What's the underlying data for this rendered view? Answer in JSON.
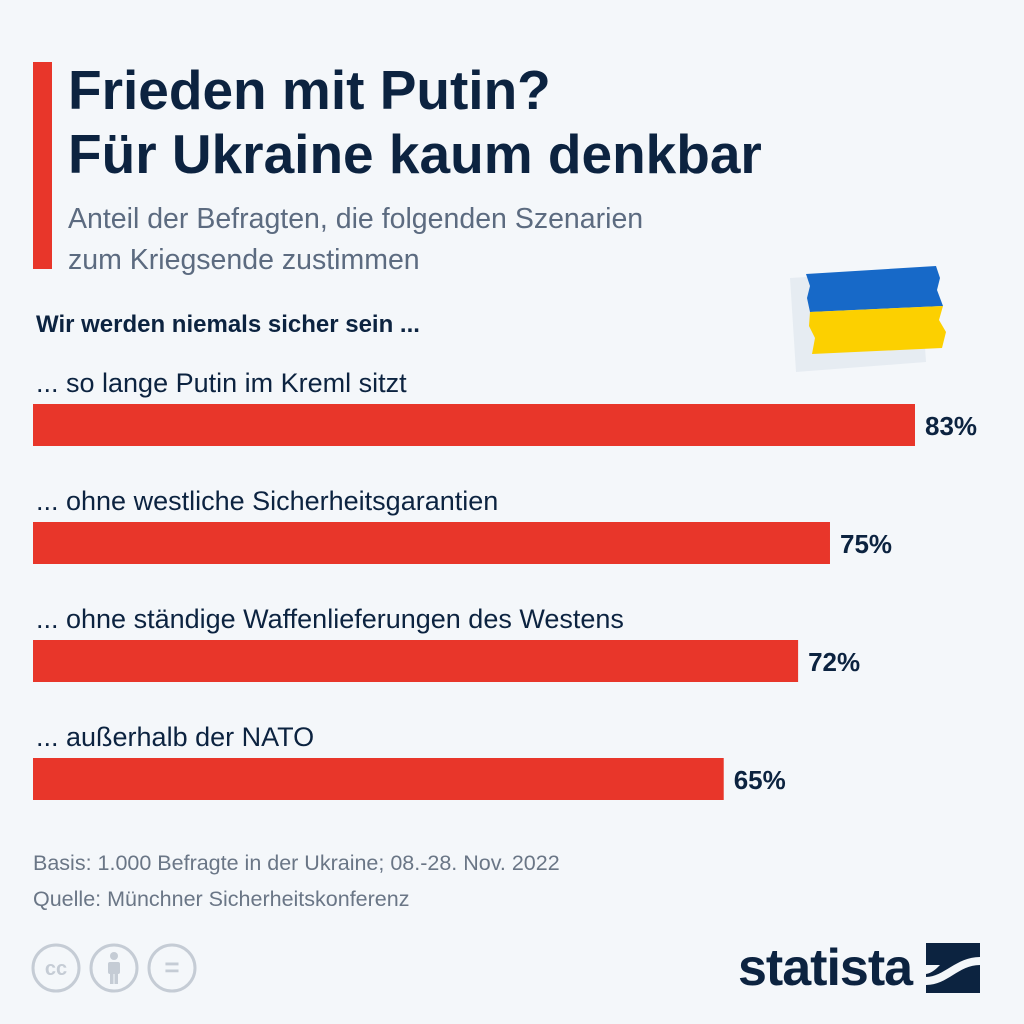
{
  "title_lines": [
    "Frieden mit Putin?",
    "Für Ukraine kaum denkbar"
  ],
  "subtitle_lines": [
    "Anteil der Befragten, die folgenden Szenarien",
    "zum Kriegsende zustimmen"
  ],
  "colors": {
    "accent": "#e8362a",
    "title": "#0c2340",
    "subtitle": "#5c6b80",
    "bar": "#e8362a",
    "flag_blue": "#1769c8",
    "flag_yellow": "#fcd000"
  },
  "chart_data": {
    "type": "bar",
    "orientation": "horizontal",
    "heading": "Wir werden niemals sicher sein ...",
    "categories": [
      "... so lange Putin im Kreml sitzt",
      "... ohne westliche Sicherheitsgarantien",
      "... ohne ständige Waffenlieferungen des Westens",
      "... außerhalb der NATO"
    ],
    "values": [
      83,
      75,
      72,
      65
    ],
    "value_labels": [
      "83%",
      "75%",
      "72%",
      "65%"
    ],
    "unit": "%",
    "xlim": [
      0,
      100
    ],
    "grid": false,
    "legend": "none"
  },
  "footer": {
    "basis": "Basis: 1.000 Befragte in der Ukraine; 08.-28. Nov. 2022",
    "source": "Quelle: Münchner Sicherheitskonferenz"
  },
  "license_icons": [
    "cc-icon",
    "attribution-icon",
    "no-derivatives-icon"
  ],
  "license_glyphs": [
    "cc",
    "="
  ],
  "brand": "statista"
}
